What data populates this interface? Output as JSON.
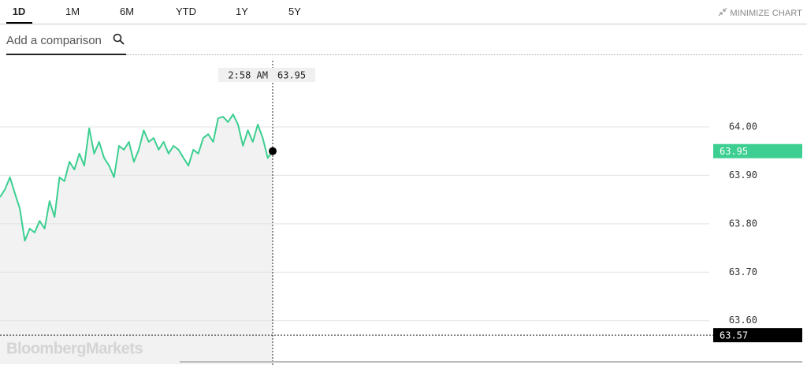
{
  "tabs": [
    "1D",
    "1M",
    "6M",
    "YTD",
    "1Y",
    "5Y"
  ],
  "minimize_label": "MINIMIZE CHART",
  "search_placeholder": "Add a comparison",
  "chart_data": {
    "type": "line",
    "values": [
      63.855,
      63.871,
      63.896,
      63.863,
      63.831,
      63.765,
      63.79,
      63.782,
      63.806,
      63.79,
      63.847,
      63.814,
      63.896,
      63.888,
      63.928,
      63.912,
      63.945,
      63.92,
      63.997,
      63.945,
      63.969,
      63.936,
      63.92,
      63.896,
      63.961,
      63.953,
      63.969,
      63.928,
      63.953,
      63.993,
      63.969,
      63.977,
      63.953,
      63.969,
      63.945,
      63.961,
      63.953,
      63.936,
      63.92,
      63.953,
      63.945,
      63.977,
      63.985,
      63.969,
      64.018,
      64.021,
      64.01,
      64.026,
      64.005,
      63.961,
      63.993,
      63.969,
      64.005,
      63.977,
      63.936,
      63.95
    ],
    "color": "#3ccf91",
    "area_color": "#f2f2f2",
    "ylim": [
      63.51,
      64.14
    ],
    "yticks": [
      {
        "value": 64,
        "label": "64.00"
      },
      {
        "value": 63.9,
        "label": "63.90"
      },
      {
        "value": 63.8,
        "label": "63.80"
      },
      {
        "value": 63.7,
        "label": "63.70"
      },
      {
        "value": 63.6,
        "label": "63.60"
      }
    ],
    "grid": true,
    "reference_line": 63.57,
    "crosshair_time": "2:58 AM",
    "watermark": "BloombergMarkets"
  }
}
